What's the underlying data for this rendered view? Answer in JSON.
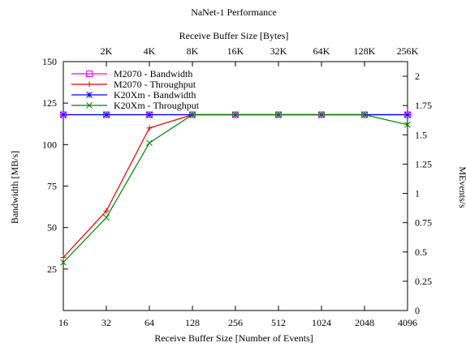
{
  "chart_data": {
    "type": "line",
    "title": "NaNet-1 Performance",
    "xlabel": "Receive Buffer Size [Number of Events]",
    "x2label": "Receive Buffer Size [Bytes]",
    "ylabel": "Bandwidth [MB/s]",
    "y2label": "MEvents/s",
    "categories": [
      "16",
      "32",
      "64",
      "128",
      "256",
      "512",
      "1024",
      "2048",
      "4096"
    ],
    "top_ticks": [
      "2K",
      "4K",
      "8K",
      "16K",
      "32K",
      "64K",
      "128K",
      "256K"
    ],
    "ylim": [
      0,
      150
    ],
    "y_ticks": [
      25,
      50,
      75,
      100,
      125,
      150
    ],
    "y2lim": [
      0,
      2.125
    ],
    "y2_ticks": [
      "0",
      "0.25",
      "0.5",
      "0.75",
      "1",
      "1.25",
      "1.5",
      "1.75",
      "2"
    ],
    "grid": false,
    "legend_position": "top-left",
    "series": [
      {
        "name": "M2070 - Bandwidth",
        "axis": "left",
        "color": "#ff00ff",
        "marker": "square",
        "values": [
          118,
          118,
          118,
          118,
          118,
          118,
          118,
          118,
          118
        ]
      },
      {
        "name": "M2070 - Throughput",
        "axis": "left",
        "color": "#e00000",
        "marker": "plus",
        "values": [
          32,
          60,
          110,
          118,
          118,
          118,
          118,
          118,
          118
        ]
      },
      {
        "name": "K20Xm - Bandwidth",
        "axis": "left",
        "color": "#0000ff",
        "marker": "star",
        "values": [
          118,
          118,
          118,
          118,
          118,
          118,
          118,
          118,
          118
        ]
      },
      {
        "name": "K20Xm - Throughput",
        "axis": "left",
        "color": "#008000",
        "marker": "x",
        "values": [
          29,
          56,
          101,
          118,
          118,
          118,
          118,
          118,
          112
        ]
      }
    ]
  }
}
